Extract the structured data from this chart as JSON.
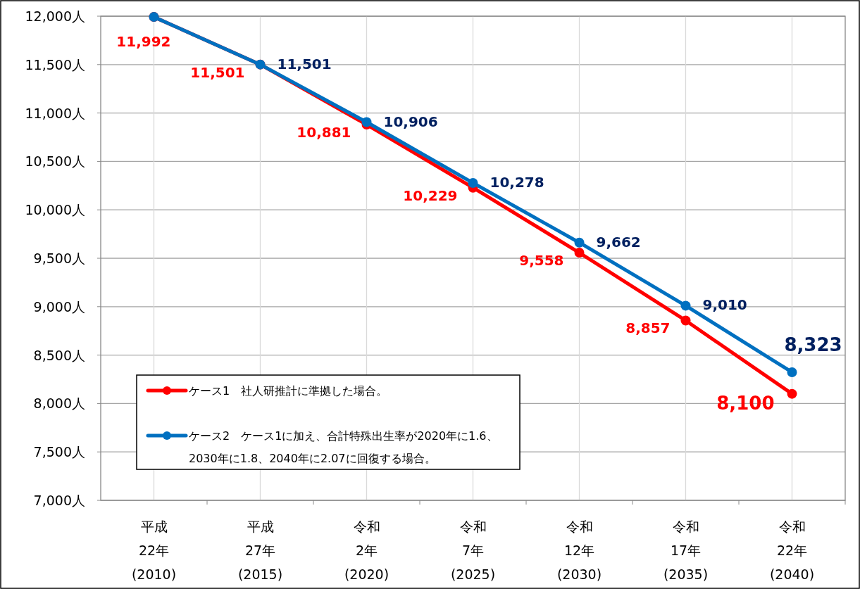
{
  "chart_data": {
    "type": "line",
    "categories": [
      "平成\n22年\n(2010)",
      "平成\n27年\n(2015)",
      "令和\n2年\n(2020)",
      "令和\n7年\n(2025)",
      "令和\n12年\n(2030)",
      "令和\n17年\n(2035)",
      "令和\n22年\n(2040)"
    ],
    "series": [
      {
        "name": "ケース1　社人研推計に準拠した場合。",
        "color": "#ff0000",
        "values": [
          11992,
          11501,
          10881,
          10229,
          9558,
          8857,
          8100
        ],
        "value_labels": [
          "11,992",
          "11,501",
          "10,881",
          "10,229",
          "9,558",
          "8,857",
          "8,100"
        ]
      },
      {
        "name": "ケース2　ケース1に加え、合計特殊出生率が2020年に1.6、2030年に1.8、2040年に2.07に回復する場合。",
        "color": "#0070c0",
        "values": [
          11992,
          11501,
          10906,
          10278,
          9662,
          9010,
          8323
        ],
        "value_labels": [
          null,
          "11,501",
          "10,906",
          "10,278",
          "9,662",
          "9,010",
          "8,323"
        ]
      }
    ],
    "ylim": [
      7000,
      12000
    ],
    "yticks": [
      {
        "value": 7000,
        "label": "7,000人"
      },
      {
        "value": 7500,
        "label": "7,500人"
      },
      {
        "value": 8000,
        "label": "8,000人"
      },
      {
        "value": 8500,
        "label": "8,500人"
      },
      {
        "value": 9000,
        "label": "9,000人"
      },
      {
        "value": 9500,
        "label": "9,500人"
      },
      {
        "value": 10000,
        "label": "10,000人"
      },
      {
        "value": 10500,
        "label": "10,500人"
      },
      {
        "value": 11000,
        "label": "11,000人"
      },
      {
        "value": 11500,
        "label": "11,500人"
      },
      {
        "value": 12000,
        "label": "12,000人"
      }
    ],
    "grid": true,
    "legend": "bottom left",
    "marker": "circle",
    "line_style": "solid"
  }
}
